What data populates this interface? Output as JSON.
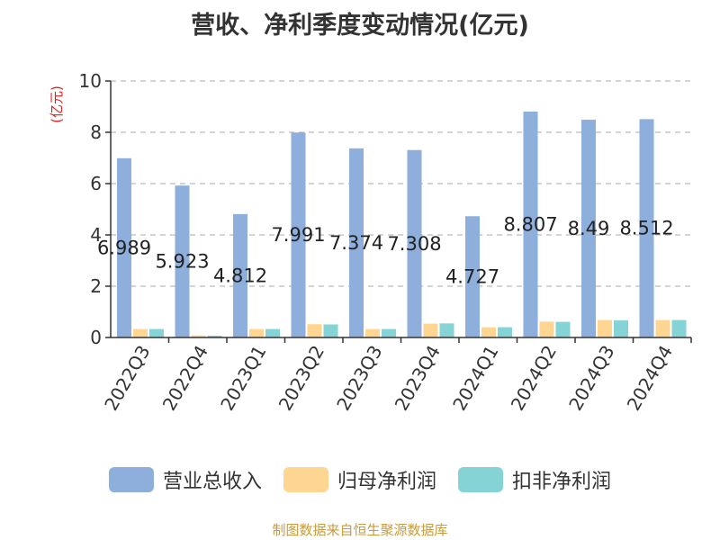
{
  "title": "营收、净利季度变动情况(亿元)",
  "source_note": "制图数据来自恒生聚源数据库",
  "colors": {
    "revenue": "#8eaedc",
    "net_profit": "#ffd592",
    "net_profit_excl": "#86d3d5",
    "axis": "#333333",
    "grid": "#bbbbbb",
    "unit": "#e0201a"
  },
  "chart_data": {
    "type": "bar",
    "title": "营收、净利季度变动情况(亿元)",
    "ylabel": "(亿元)",
    "xlabel": "",
    "ylim": [
      0,
      10
    ],
    "yticks": [
      0,
      2,
      4,
      6,
      8,
      10
    ],
    "grid": true,
    "legend_position": "bottom",
    "categories": [
      "2022Q3",
      "2022Q4",
      "2023Q1",
      "2023Q2",
      "2023Q3",
      "2023Q4",
      "2024Q1",
      "2024Q2",
      "2024Q3",
      "2024Q4"
    ],
    "series": [
      {
        "name": "营业总收入",
        "color": "#8eaedc",
        "values": [
          6.989,
          5.923,
          4.812,
          7.991,
          7.374,
          7.308,
          4.727,
          8.807,
          8.49,
          8.512
        ],
        "labels": [
          "6.989",
          "5.923",
          "4.812",
          "7.991",
          "7.374",
          "7.308",
          "4.727",
          "8.807",
          "8.49",
          "8.512"
        ]
      },
      {
        "name": "归母净利润",
        "color": "#ffd592",
        "values": [
          0.33,
          0.08,
          0.33,
          0.52,
          0.33,
          0.54,
          0.4,
          0.62,
          0.68,
          0.68
        ]
      },
      {
        "name": "扣非净利润",
        "color": "#86d3d5",
        "values": [
          0.33,
          0.07,
          0.33,
          0.51,
          0.33,
          0.55,
          0.4,
          0.61,
          0.67,
          0.68
        ]
      }
    ]
  }
}
